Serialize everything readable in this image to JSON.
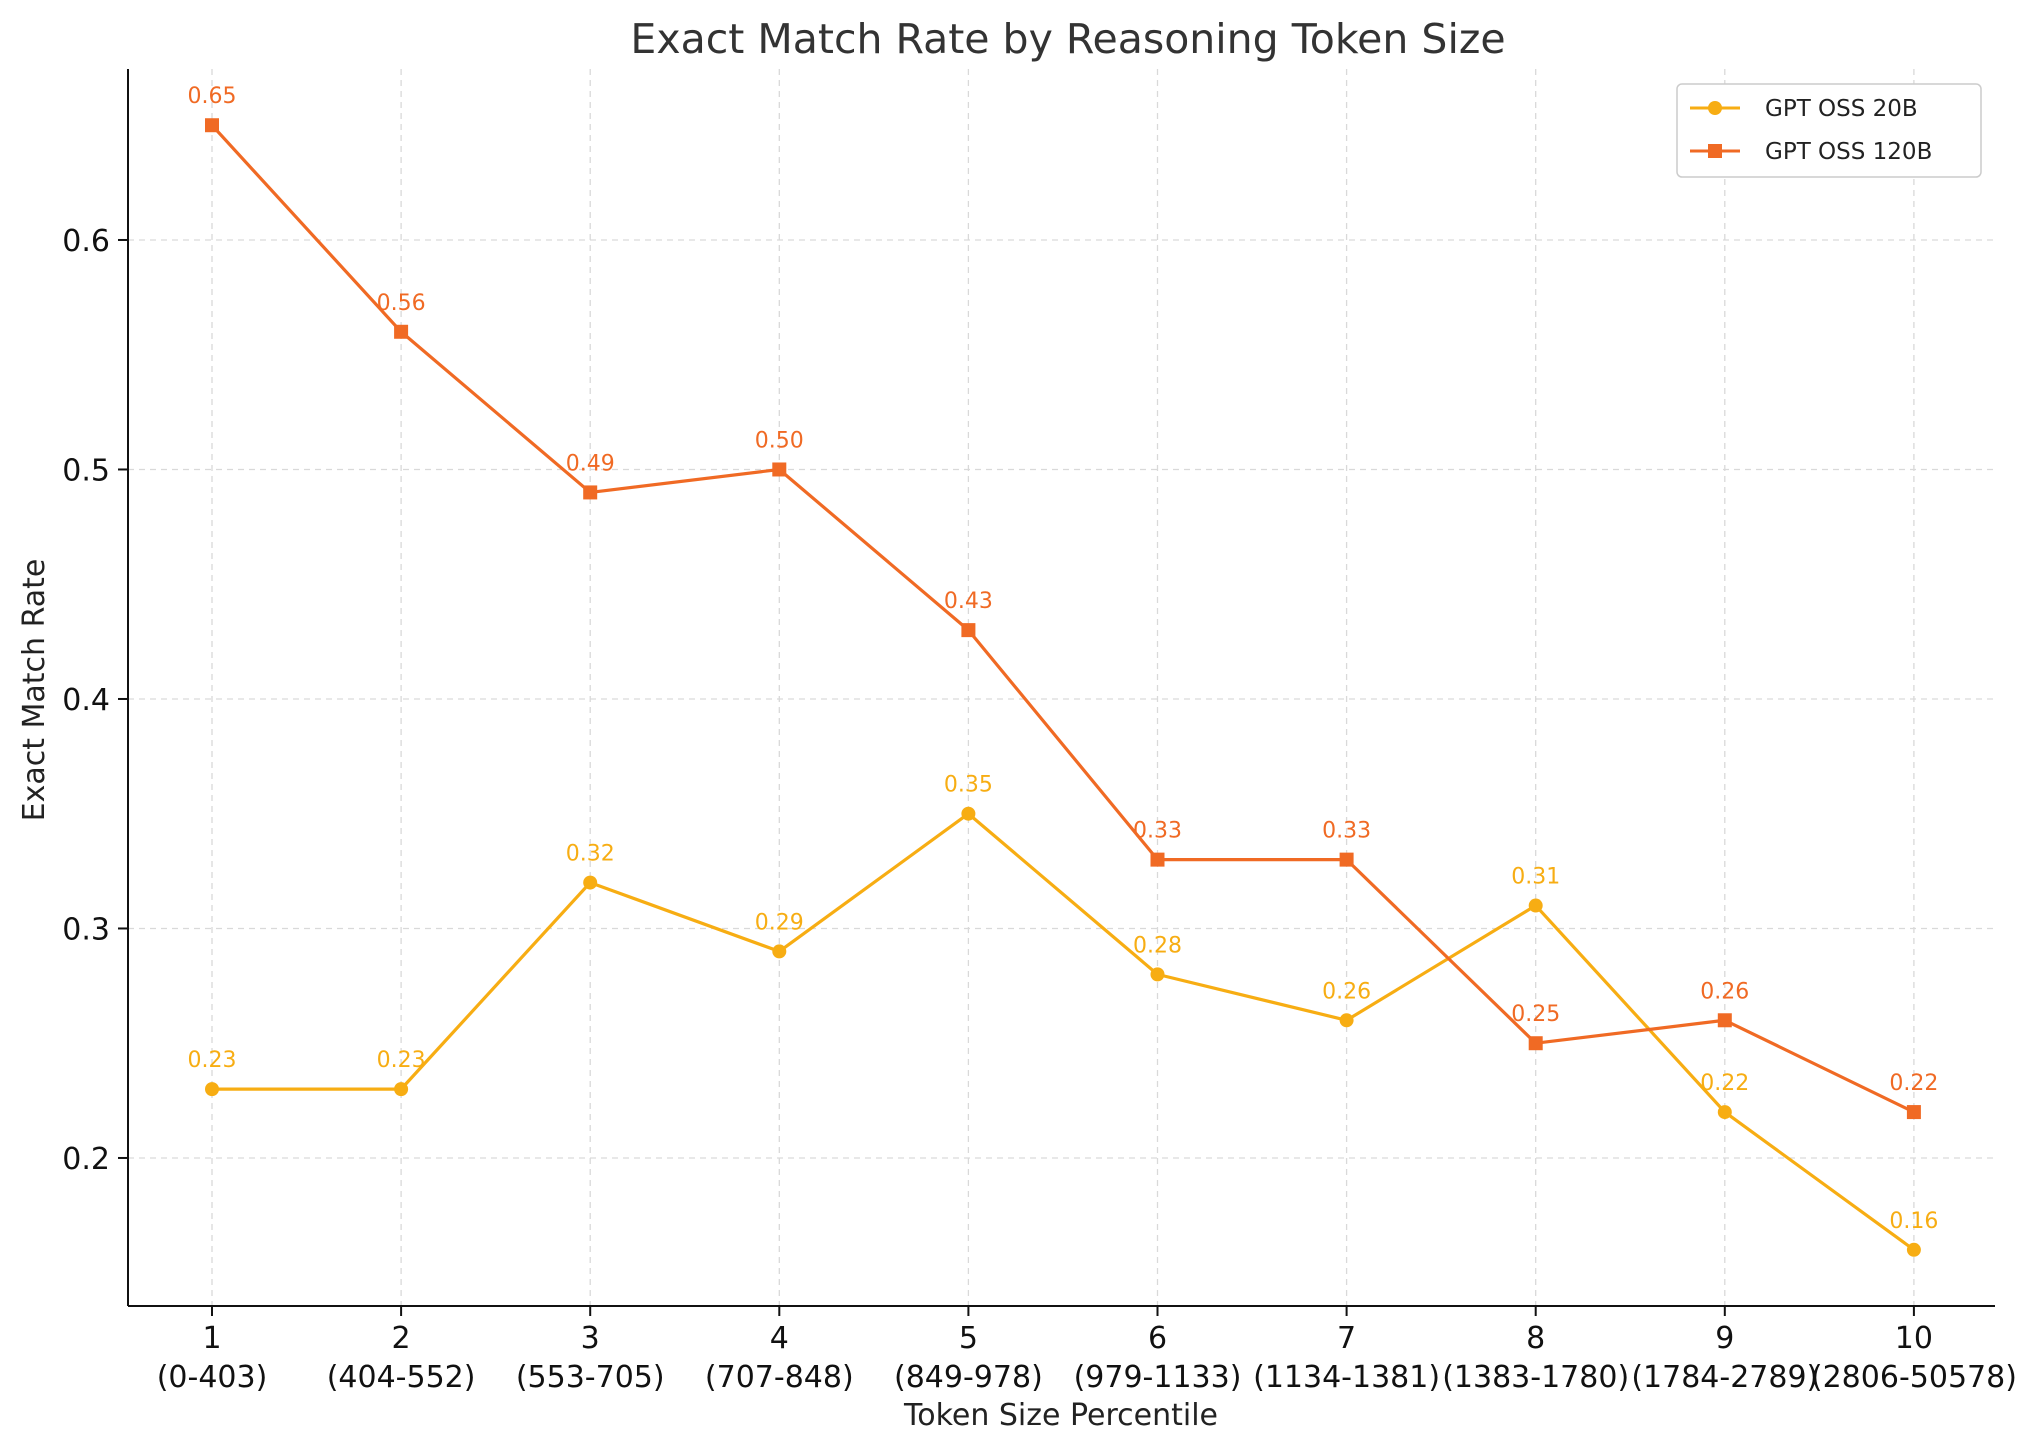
{
  "chart_data": {
    "type": "line",
    "title": "Exact Match Rate by Reasoning Token Size",
    "xlabel": "Token Size Percentile",
    "ylabel": "Exact Match Rate",
    "categories": [
      "1",
      "2",
      "3",
      "4",
      "5",
      "6",
      "7",
      "8",
      "9",
      "10"
    ],
    "category_ranges": [
      "(0-403)",
      "(404-552)",
      "(553-705)",
      "(707-848)",
      "(849-978)",
      "(979-1133)",
      "(1134-1381)",
      "(1383-1780)",
      "(1784-2789)",
      "(2806-50578)"
    ],
    "yticks": [
      "0.2",
      "0.3",
      "0.4",
      "0.5",
      "0.6"
    ],
    "ylim": [
      0.1355,
      0.6745
    ],
    "grid": true,
    "legend_position": "top-right",
    "series": [
      {
        "name": "GPT OSS 20B",
        "color": "#F7AD13",
        "marker": "circle",
        "values": [
          0.23,
          0.23,
          0.32,
          0.29,
          0.35,
          0.28,
          0.26,
          0.31,
          0.22,
          0.16
        ],
        "labels": [
          "0.23",
          "0.23",
          "0.32",
          "0.29",
          "0.35",
          "0.28",
          "0.26",
          "0.31",
          "0.22",
          "0.16"
        ]
      },
      {
        "name": "GPT OSS 120B",
        "color": "#F06A24",
        "marker": "square",
        "values": [
          0.65,
          0.56,
          0.49,
          0.5,
          0.43,
          0.33,
          0.33,
          0.25,
          0.26,
          0.22
        ],
        "labels": [
          "0.65",
          "0.56",
          "0.49",
          "0.50",
          "0.43",
          "0.33",
          "0.33",
          "0.25",
          "0.26",
          "0.22"
        ]
      }
    ]
  }
}
